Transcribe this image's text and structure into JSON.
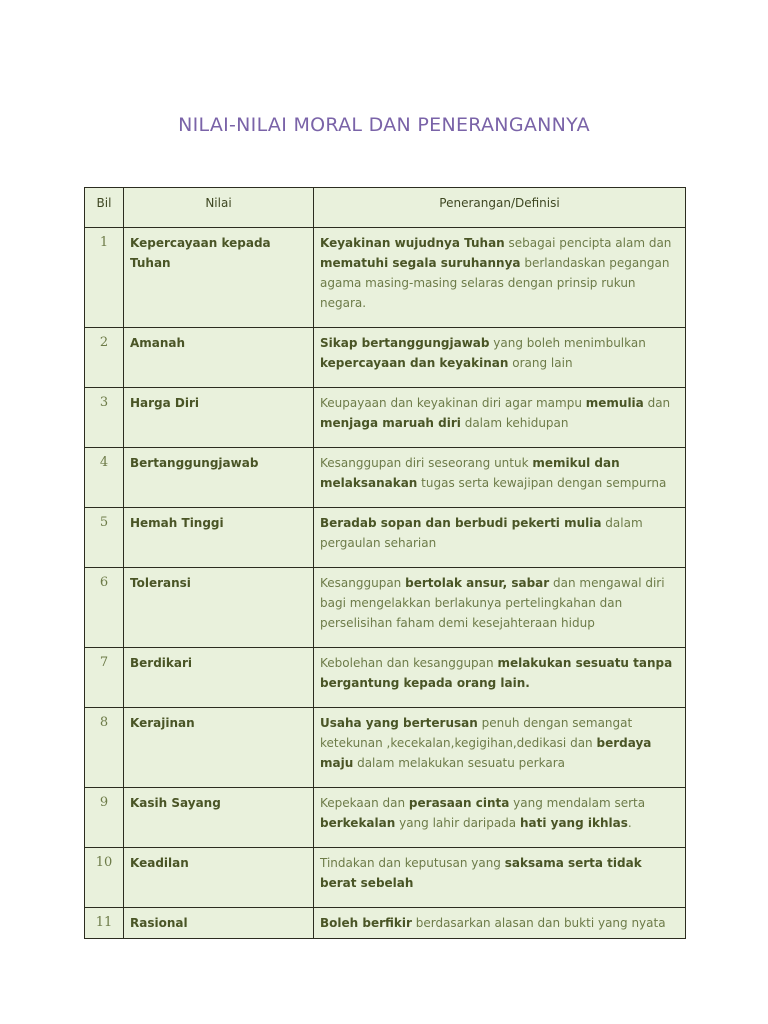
{
  "title": "NILAI-NILAI MORAL DAN PENERANGANNYA",
  "headers": {
    "bil": "Bil",
    "nilai": "Nilai",
    "penerangan": "Penerangan/Definisi"
  },
  "rows": [
    {
      "bil": "1",
      "nilai": "Kepercayaan kepada Tuhan",
      "desc": [
        {
          "t": "Keyakinan wujudnya Tuhan",
          "b": true
        },
        {
          "t": " sebagai pencipta alam dan "
        },
        {
          "t": "mematuhi segala suruhannya",
          "b": true
        },
        {
          "t": " berlandaskan pegangan agama masing-masing selaras dengan prinsip rukun negara."
        }
      ]
    },
    {
      "bil": "2",
      "nilai": "Amanah",
      "desc": [
        {
          "t": "Sikap bertanggungjawab",
          "b": true
        },
        {
          "t": " yang boleh menimbulkan "
        },
        {
          "t": "kepercayaan dan keyakinan",
          "b": true
        },
        {
          "t": " orang lain"
        }
      ]
    },
    {
      "bil": "3",
      "nilai": "Harga Diri",
      "desc": [
        {
          "t": "Keupayaan dan keyakinan diri agar mampu "
        },
        {
          "t": "memulia",
          "b": true
        },
        {
          "t": " dan "
        },
        {
          "t": "menjaga maruah diri",
          "b": true
        },
        {
          "t": " dalam kehidupan"
        }
      ]
    },
    {
      "bil": "4",
      "nilai": "Bertanggungjawab",
      "desc": [
        {
          "t": "Kesanggupan diri seseorang untuk "
        },
        {
          "t": "memikul dan melaksanakan",
          "b": true
        },
        {
          "t": "  tugas serta kewajipan dengan sempurna"
        }
      ]
    },
    {
      "bil": "5",
      "nilai": "Hemah Tinggi",
      "desc": [
        {
          "t": "Beradab sopan dan berbudi pekerti mulia",
          "b": true
        },
        {
          "t": " dalam pergaulan seharian"
        }
      ]
    },
    {
      "bil": "6",
      "nilai": "Toleransi",
      "desc": [
        {
          "t": "Kesanggupan "
        },
        {
          "t": "bertolak ansur, sabar",
          "b": true
        },
        {
          "t": " dan mengawal diri bagi mengelakkan berlakunya pertelingkahan dan perselisihan faham demi kesejahteraan hidup"
        }
      ]
    },
    {
      "bil": "7",
      "nilai": "Berdikari",
      "desc": [
        {
          "t": "Kebolehan dan kesanggupan  "
        },
        {
          "t": "melakukan sesuatu tanpa bergantung kepada orang lain.",
          "b": true
        }
      ]
    },
    {
      "bil": "8",
      "nilai": "Kerajinan",
      "desc": [
        {
          "t": "Usaha yang berterusan",
          "b": true
        },
        {
          "t": " penuh dengan semangat ketekunan ,kecekalan,kegigihan,dedikasi dan "
        },
        {
          "t": "berdaya maju",
          "b": true
        },
        {
          "t": " dalam melakukan sesuatu perkara"
        }
      ]
    },
    {
      "bil": "9",
      "nilai": "Kasih Sayang",
      "desc": [
        {
          "t": "Kepekaan dan "
        },
        {
          "t": "perasaan cinta",
          "b": true
        },
        {
          "t": " yang mendalam serta "
        },
        {
          "t": "berkekalan",
          "b": true
        },
        {
          "t": " yang lahir daripada "
        },
        {
          "t": "hati yang ikhlas",
          "b": true
        },
        {
          "t": "."
        }
      ]
    },
    {
      "bil": "10",
      "nilai": "Keadilan",
      "desc": [
        {
          "t": "Tindakan dan keputusan yang "
        },
        {
          "t": "saksama serta tidak berat sebelah",
          "b": true
        }
      ]
    },
    {
      "bil": "11",
      "nilai": "Rasional",
      "desc": [
        {
          "t": "Boleh berfikir",
          "b": true
        },
        {
          "t": " berdasarkan alasan dan bukti yang nyata"
        }
      ]
    }
  ]
}
